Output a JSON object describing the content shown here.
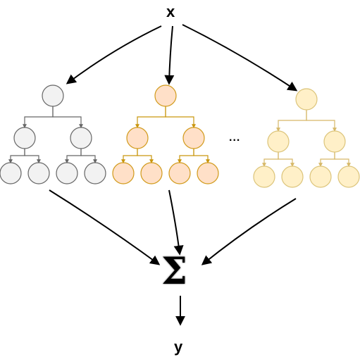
{
  "diagram": {
    "input_label": "x",
    "output_label": "y",
    "sum_symbol": "Σ",
    "ellipsis": "...",
    "trees": [
      {
        "fill": "#f2f2f2",
        "stroke": "#666666",
        "edge": "#666666"
      },
      {
        "fill": "#ffe0c8",
        "stroke": "#d19a1a",
        "edge": "#c9960f"
      },
      {
        "fill": "#fff0c8",
        "stroke": "#dcc47a",
        "edge": "#d6b868"
      }
    ]
  }
}
